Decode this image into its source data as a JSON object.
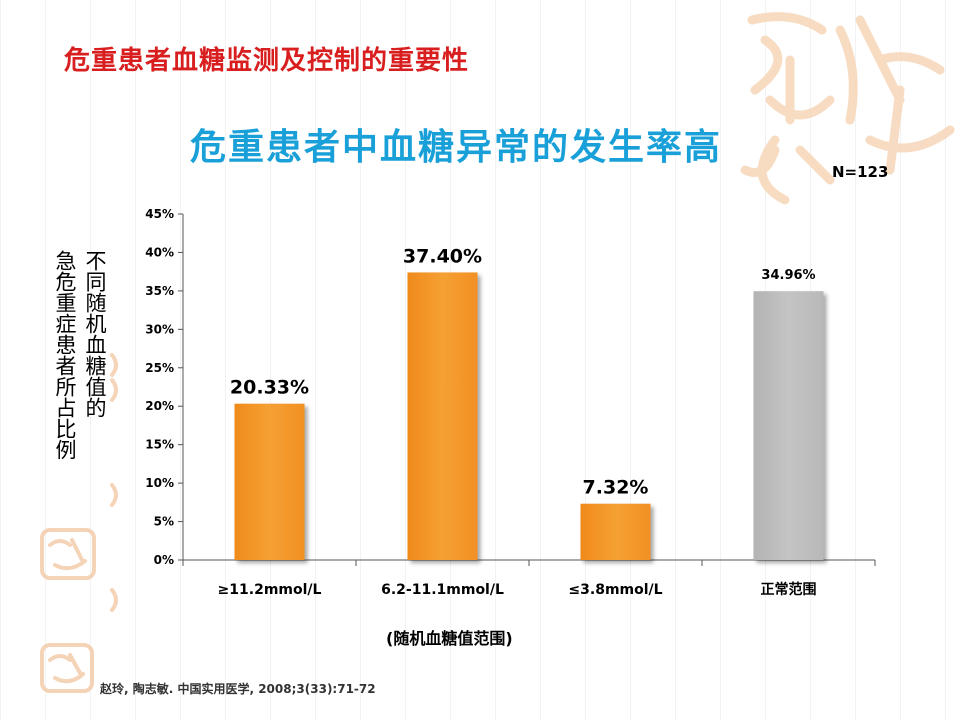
{
  "slide": {
    "title": "危重患者血糖监测及控制的重要性",
    "n_label": "N=123",
    "citation": "赵玲, 陶志敏. 中国实用医学, 2008;3(33):71-72"
  },
  "colors": {
    "slide_title": "#d81e1e",
    "chart_title": "#1aa0d8",
    "bar_orange": "#f5a033",
    "bar_gray": "#c4c4c4",
    "decor": "#f6d6b8"
  },
  "chart_data": {
    "type": "bar",
    "title": "危重患者中血糖异常的发生率高",
    "ylabel_lines": [
      "不同随机血糖值的",
      "急危重症患者所占比例"
    ],
    "xlabel": "(随机血糖值范围)",
    "categories": [
      "≥11.2mmol/L",
      "6.2-11.1mmol/L",
      "≤3.8mmol/L",
      "正常范围"
    ],
    "values": [
      20.33,
      37.4,
      7.32,
      34.96
    ],
    "value_labels": [
      "20.33%",
      "37.40%",
      "7.32%",
      "34.96%"
    ],
    "bar_colors": [
      "#f5a033",
      "#f5a033",
      "#f5a033",
      "#c4c4c4"
    ],
    "ylim": [
      0,
      45
    ],
    "yticks": [
      0,
      5,
      10,
      15,
      20,
      25,
      30,
      35,
      40,
      45
    ],
    "ytick_labels": [
      "0%",
      "5%",
      "10%",
      "15%",
      "20%",
      "25%",
      "30%",
      "35%",
      "40%",
      "45%"
    ],
    "grid": false,
    "legend": "none"
  }
}
